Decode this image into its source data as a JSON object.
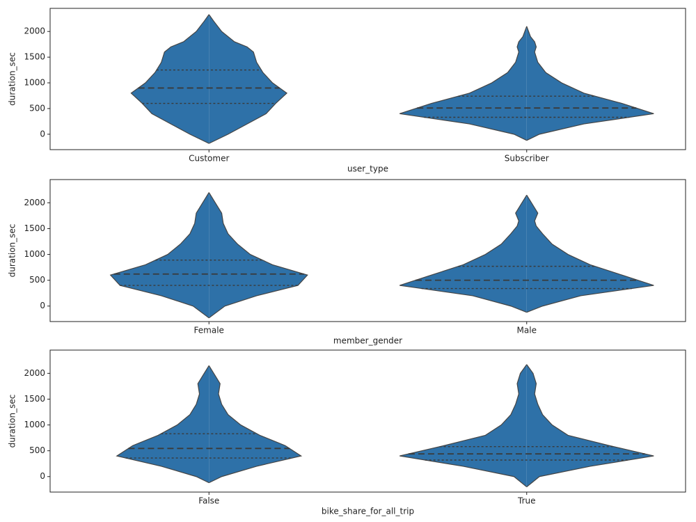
{
  "chart_data": [
    {
      "type": "violin",
      "ylabel": "duration_sec",
      "xlabel": "user_type",
      "color": "#2e71a8",
      "grid": false,
      "ylim": [
        -300,
        2450
      ],
      "yticks": [
        0,
        500,
        1000,
        1500,
        2000
      ],
      "categories": [
        "Customer",
        "Subscriber"
      ],
      "violins": [
        {
          "y": [
            -180,
            0,
            200,
            400,
            600,
            800,
            1000,
            1200,
            1400,
            1600,
            1700,
            1800,
            2000,
            2200,
            2330
          ],
          "density": [
            0,
            0.06,
            0.12,
            0.18,
            0.21,
            0.245,
            0.2,
            0.17,
            0.15,
            0.14,
            0.12,
            0.08,
            0.04,
            0.015,
            0
          ],
          "quartiles": [
            600,
            900,
            1250
          ]
        },
        {
          "y": [
            -120,
            0,
            200,
            400,
            600,
            800,
            1000,
            1200,
            1400,
            1600,
            1700,
            1800,
            1900,
            2100
          ],
          "density": [
            0,
            0.04,
            0.18,
            0.4,
            0.3,
            0.18,
            0.11,
            0.06,
            0.035,
            0.025,
            0.03,
            0.025,
            0.012,
            0
          ],
          "quartiles": [
            330,
            510,
            740
          ]
        }
      ]
    },
    {
      "type": "violin",
      "ylabel": "duration_sec",
      "xlabel": "member_gender",
      "color": "#2e71a8",
      "grid": false,
      "ylim": [
        -300,
        2450
      ],
      "yticks": [
        0,
        500,
        1000,
        1500,
        2000
      ],
      "categories": [
        "Female",
        "Male"
      ],
      "violins": [
        {
          "y": [
            -230,
            0,
            200,
            400,
            600,
            800,
            1000,
            1200,
            1400,
            1600,
            1800,
            2000,
            2200
          ],
          "density": [
            0,
            0.05,
            0.15,
            0.28,
            0.31,
            0.2,
            0.13,
            0.09,
            0.06,
            0.045,
            0.04,
            0.02,
            0
          ],
          "quartiles": [
            400,
            620,
            890
          ]
        },
        {
          "y": [
            -120,
            0,
            200,
            400,
            600,
            800,
            1000,
            1200,
            1400,
            1550,
            1650,
            1800,
            1950,
            2150
          ],
          "density": [
            0,
            0.05,
            0.17,
            0.4,
            0.3,
            0.2,
            0.13,
            0.08,
            0.05,
            0.03,
            0.025,
            0.035,
            0.02,
            0
          ],
          "quartiles": [
            340,
            500,
            770
          ]
        }
      ]
    },
    {
      "type": "violin",
      "ylabel": "duration_sec",
      "xlabel": "bike_share_for_all_trip",
      "color": "#2e71a8",
      "grid": false,
      "ylim": [
        -300,
        2450
      ],
      "yticks": [
        0,
        500,
        1000,
        1500,
        2000
      ],
      "categories": [
        "False",
        "True"
      ],
      "violins": [
        {
          "y": [
            -120,
            0,
            200,
            400,
            600,
            800,
            1000,
            1200,
            1400,
            1600,
            1800,
            1950,
            2150
          ],
          "density": [
            0,
            0.04,
            0.15,
            0.29,
            0.24,
            0.16,
            0.1,
            0.06,
            0.04,
            0.03,
            0.035,
            0.02,
            0
          ],
          "quartiles": [
            360,
            545,
            830
          ]
        },
        {
          "y": [
            -200,
            0,
            200,
            400,
            600,
            800,
            1000,
            1200,
            1400,
            1600,
            1800,
            2000,
            2170
          ],
          "density": [
            0,
            0.04,
            0.2,
            0.4,
            0.26,
            0.13,
            0.08,
            0.05,
            0.035,
            0.025,
            0.03,
            0.02,
            0
          ],
          "quartiles": [
            320,
            440,
            580
          ]
        }
      ]
    }
  ]
}
